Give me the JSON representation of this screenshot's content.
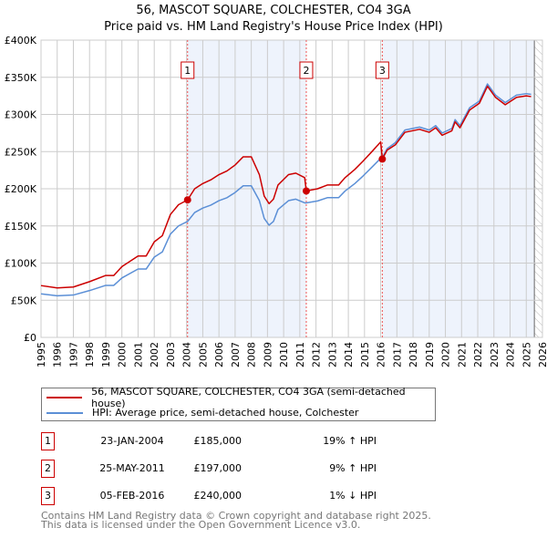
{
  "chart_data": {
    "type": "line",
    "title": "56, MASCOT SQUARE, COLCHESTER, CO4 3GA",
    "subtitle": "Price paid vs. HM Land Registry's House Price Index (HPI)",
    "xlim": [
      1995,
      2026
    ],
    "ylim": [
      0,
      400000
    ],
    "y_ticks": [
      {
        "v": 0,
        "label": "£0"
      },
      {
        "v": 50000,
        "label": "£50K"
      },
      {
        "v": 100000,
        "label": "£100K"
      },
      {
        "v": 150000,
        "label": "£150K"
      },
      {
        "v": 200000,
        "label": "£200K"
      },
      {
        "v": 250000,
        "label": "£250K"
      },
      {
        "v": 300000,
        "label": "£300K"
      },
      {
        "v": 350000,
        "label": "£350K"
      },
      {
        "v": 400000,
        "label": "£400K"
      }
    ],
    "x_ticks": [
      "1995",
      "1996",
      "1997",
      "1998",
      "1999",
      "2000",
      "2001",
      "2002",
      "2003",
      "2004",
      "2005",
      "2006",
      "2007",
      "2008",
      "2009",
      "2010",
      "2011",
      "2012",
      "2013",
      "2014",
      "2015",
      "2016",
      "2017",
      "2018",
      "2019",
      "2020",
      "2021",
      "2022",
      "2023",
      "2024",
      "2025",
      "2026"
    ],
    "grid": true,
    "x": [
      1995.0,
      1996.0,
      1997.0,
      1998.0,
      1999.0,
      1999.5,
      2000.0,
      2001.0,
      2001.5,
      2002.0,
      2002.5,
      2003.0,
      2003.5,
      2004.06,
      2004.5,
      2005.0,
      2005.5,
      2006.0,
      2006.5,
      2007.0,
      2007.5,
      2008.0,
      2008.5,
      2008.8,
      2009.1,
      2009.37,
      2009.65,
      2010.3,
      2010.75,
      2011.3,
      2011.4,
      2012.1,
      2012.7,
      2013.4,
      2013.8,
      2014.4,
      2014.9,
      2015.5,
      2016.0,
      2016.1,
      2016.4,
      2016.9,
      2017.5,
      2018.4,
      2019.0,
      2019.4,
      2019.8,
      2020.4,
      2020.6,
      2020.9,
      2021.5,
      2022.1,
      2022.6,
      2023.1,
      2023.7,
      2024.4,
      2025.0,
      2025.3
    ],
    "series": [
      {
        "name": "56, MASCOT SQUARE, COLCHESTER, CO4 3GA (semi-detached house)",
        "color": "#cc0000",
        "values": [
          69700,
          66600,
          67800,
          75000,
          83300,
          83300,
          95200,
          109500,
          109500,
          128500,
          136900,
          165400,
          178500,
          185000,
          200000,
          207000,
          212000,
          219000,
          224000,
          232000,
          243000,
          243000,
          219000,
          190000,
          180000,
          186000,
          205000,
          219000,
          221000,
          215000,
          197000,
          200000,
          205000,
          205000,
          215000,
          226000,
          237000,
          251000,
          263000,
          240000,
          252000,
          259000,
          276000,
          280000,
          276000,
          282000,
          272000,
          278000,
          290000,
          282000,
          306000,
          315000,
          338000,
          323000,
          313000,
          323000,
          325000,
          324000
        ]
      },
      {
        "name": "HPI: Average price, semi-detached house, Colchester",
        "color": "#5b8fd6",
        "values": [
          58600,
          56000,
          57000,
          63000,
          70000,
          70000,
          80000,
          92000,
          92000,
          108000,
          115000,
          139000,
          150000,
          156000,
          168000,
          174000,
          178000,
          184000,
          188000,
          195000,
          204000,
          204000,
          184000,
          160000,
          151000,
          156000,
          172000,
          184000,
          186000,
          181000,
          181000,
          183600,
          188000,
          188000,
          197000,
          207000,
          217000,
          230000,
          241000,
          242000,
          254000,
          262000,
          279000,
          283000,
          279000,
          285000,
          275000,
          281000,
          293000,
          285000,
          309000,
          318000,
          341000,
          326000,
          316000,
          326000,
          328000,
          327000
        ]
      }
    ],
    "sales": [
      {
        "n": "1",
        "x": 2004.06,
        "price": 185000,
        "date": "23-JAN-2004",
        "price_label": "£185,000",
        "hpi": "19% ↑ HPI"
      },
      {
        "n": "2",
        "x": 2011.4,
        "price": 197000,
        "date": "25-MAY-2011",
        "price_label": "£197,000",
        "hpi": "9% ↑ HPI"
      },
      {
        "n": "3",
        "x": 2016.1,
        "price": 240000,
        "date": "05-FEB-2016",
        "price_label": "£240,000",
        "hpi": "1% ↓ HPI"
      }
    ],
    "hatched_from": 2025.5,
    "legend_position": "below"
  },
  "footer": {
    "line1": "Contains HM Land Registry data © Crown copyright and database right 2025.",
    "line2": "This data is licensed under the Open Government Licence v3.0."
  }
}
